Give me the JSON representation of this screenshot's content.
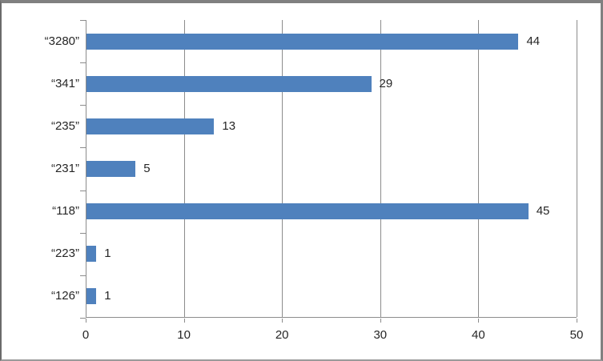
{
  "chart_data": {
    "type": "bar",
    "orientation": "horizontal",
    "title": "",
    "xlabel": "",
    "ylabel": "",
    "categories": [
      "“3280”",
      "“341”",
      "“235”",
      "“231”",
      "“118”",
      "“223”",
      "“126”"
    ],
    "values": [
      44,
      29,
      13,
      5,
      45,
      1,
      1
    ],
    "data_labels": [
      "44",
      "29",
      "13",
      "5",
      "45",
      "1",
      "1"
    ],
    "xlim": [
      0,
      50
    ],
    "xticks": [
      0,
      10,
      20,
      30,
      40,
      50
    ],
    "xtick_labels": [
      "0",
      "10",
      "20",
      "30",
      "40",
      "50"
    ],
    "grid": "vertical-major",
    "legend": "none",
    "colors": {
      "bar": "#4F81BD",
      "gridline": "#8C8C8C",
      "axis": "#8C8C8C",
      "text": "#262626",
      "frame_border": "#808080",
      "background": "#FFFFFF"
    }
  }
}
